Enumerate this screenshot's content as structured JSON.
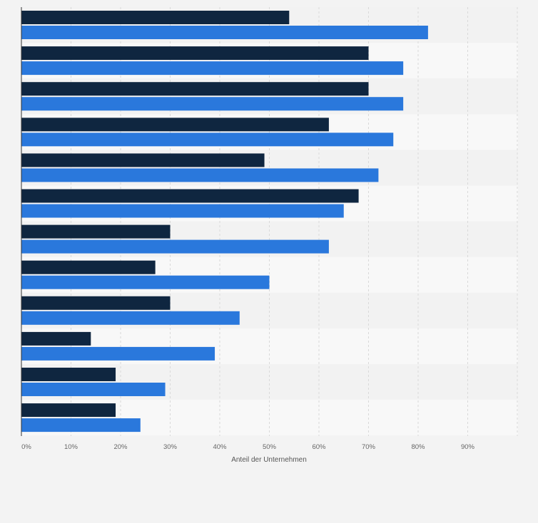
{
  "chart_data": {
    "type": "bar",
    "orientation": "horizontal",
    "categories": [
      "",
      "",
      "",
      "",
      "",
      "",
      "",
      "",
      "",
      "",
      "",
      ""
    ],
    "series": [
      {
        "color": "#0f2640",
        "values": [
          54,
          70,
          70,
          62,
          49,
          68,
          30,
          27,
          30,
          14,
          19,
          19
        ]
      },
      {
        "color": "#2a78dc",
        "values": [
          82,
          77,
          77,
          75,
          72,
          65,
          62,
          50,
          44,
          39,
          29,
          24
        ]
      }
    ],
    "xlim": [
      0,
      100
    ],
    "x_ticks": [
      0,
      10,
      20,
      30,
      40,
      50,
      60,
      70,
      80,
      90
    ],
    "tick_format": "%",
    "xlabel": "Anteil der Unternehmen",
    "grid": true,
    "legend": "none"
  }
}
